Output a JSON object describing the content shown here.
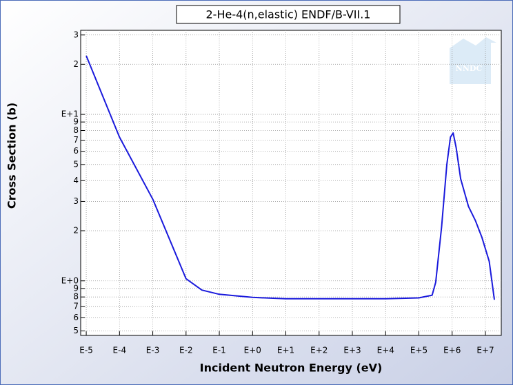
{
  "chart_data": {
    "type": "line",
    "title": "2-He-4(n,elastic) ENDF/B-VII.1",
    "xlabel": "Incident Neutron Energy (eV)",
    "ylabel": "Cross Section (b)",
    "watermark": "NNDC",
    "xscale": "log",
    "yscale": "log",
    "grid": true,
    "color": "#1a1adc",
    "x": [
      1e-05,
      0.0001,
      0.001,
      0.01,
      0.03,
      0.1,
      1,
      10,
      100,
      1000,
      10000,
      100000,
      250000,
      320000,
      480000,
      690000,
      890000,
      1070000,
      1320000,
      1800000,
      2450000,
      3100000,
      5000000,
      7900000,
      13000000,
      18600000
    ],
    "values": [
      22.5,
      7.3,
      3.09,
      1.03,
      0.88,
      0.83,
      0.795,
      0.78,
      0.78,
      0.78,
      0.78,
      0.79,
      0.82,
      0.98,
      2.1,
      4.98,
      7.3,
      7.73,
      6.3,
      4.1,
      3.3,
      2.8,
      2.3,
      1.82,
      1.31,
      0.77
    ],
    "xlim": [
      6.8e-06,
      30000000
    ],
    "ylim": [
      0.47,
      32
    ],
    "xticks": [
      {
        "value": 1e-05,
        "label": "E-5"
      },
      {
        "value": 0.0001,
        "label": "E-4"
      },
      {
        "value": 0.001,
        "label": "E-3"
      },
      {
        "value": 0.01,
        "label": "E-2"
      },
      {
        "value": 0.1,
        "label": "E-1"
      },
      {
        "value": 1,
        "label": "E+0"
      },
      {
        "value": 10,
        "label": "E+1"
      },
      {
        "value": 100,
        "label": "E+2"
      },
      {
        "value": 1000,
        "label": "E+3"
      },
      {
        "value": 10000,
        "label": "E+4"
      },
      {
        "value": 100000,
        "label": "E+5"
      },
      {
        "value": 1000000,
        "label": "E+6"
      },
      {
        "value": 10000000,
        "label": "E+7"
      }
    ],
    "yticks": [
      {
        "value": 0.5,
        "label": "5"
      },
      {
        "value": 0.6,
        "label": "6"
      },
      {
        "value": 0.7,
        "label": "7"
      },
      {
        "value": 0.8,
        "label": "8"
      },
      {
        "value": 0.9,
        "label": "9"
      },
      {
        "value": 1,
        "label": "E+0"
      },
      2,
      3,
      4,
      5,
      6,
      7,
      8,
      9,
      {
        "value": 10,
        "label": "E+1"
      },
      {
        "value": 20,
        "label": "2"
      },
      {
        "value": 30,
        "label": "3"
      }
    ]
  }
}
